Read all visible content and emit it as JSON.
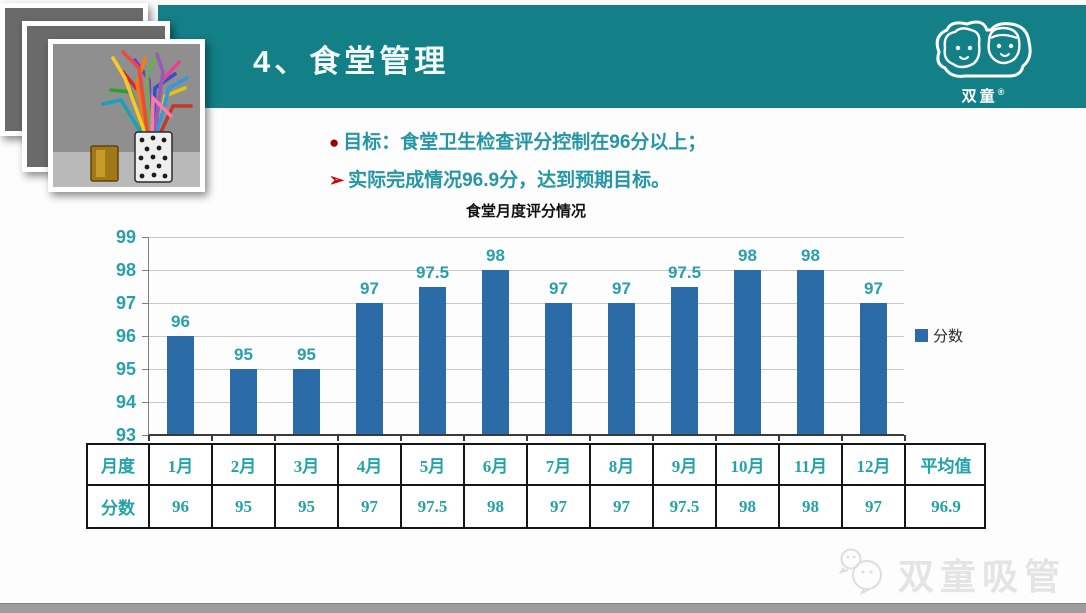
{
  "slide": {
    "header": {
      "title": "4、食堂管理"
    },
    "logo": {
      "brand": "双童",
      "reg": "®"
    },
    "bullets": [
      {
        "marker": "●",
        "text": "目标：食堂卫生检查评分控制在96分以上；"
      },
      {
        "marker": "➢",
        "text": "实际完成情况96.9分，达到预期目标。"
      }
    ]
  },
  "chart_data": {
    "type": "bar",
    "title": "食堂月度评分情况",
    "categories": [
      "1月",
      "2月",
      "3月",
      "4月",
      "5月",
      "6月",
      "7月",
      "8月",
      "9月",
      "10月",
      "11月",
      "12月"
    ],
    "series": [
      {
        "name": "分数",
        "values": [
          96,
          95,
          95,
          97,
          97.5,
          98,
          97,
          97,
          97.5,
          98,
          98,
          97
        ]
      }
    ],
    "xlabel": "",
    "ylabel": "",
    "ylim": [
      93,
      99
    ],
    "ytick_step": 1,
    "grid": true,
    "legend_position": "right"
  },
  "table": {
    "header_row_label": "月度",
    "value_row_label": "分数",
    "columns": [
      "1月",
      "2月",
      "3月",
      "4月",
      "5月",
      "6月",
      "7月",
      "8月",
      "9月",
      "10月",
      "11月",
      "12月",
      "平均值"
    ],
    "values": [
      "96",
      "95",
      "95",
      "97",
      "97.5",
      "98",
      "97",
      "97",
      "97.5",
      "98",
      "98",
      "97",
      "96.9"
    ]
  },
  "footer": {
    "watermark": "双童吸管"
  },
  "colors": {
    "band_teal": "#137f87",
    "bar_blue": "#2b6ca8",
    "label_teal": "#28a0ac",
    "text_teal": "#2496a5",
    "bullet_red": "#990000",
    "arrow_red": "#cc0000",
    "gridline_gray": "#c9c9c9",
    "watermark_gray": "#e4e4e4"
  }
}
